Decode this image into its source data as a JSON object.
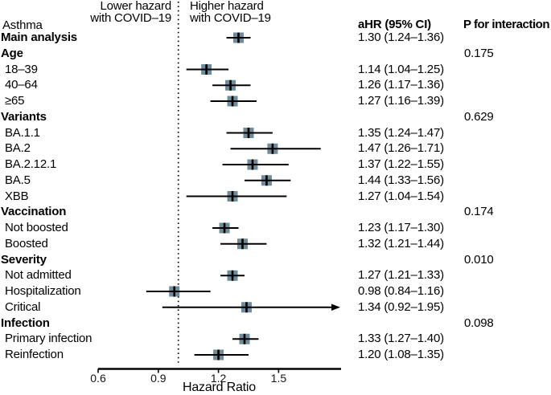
{
  "chart_data": {
    "type": "scatter",
    "subtype": "forest-plot",
    "title": "",
    "xlabel": "Hazard Ratio",
    "x_ticks": [
      "0.6",
      "0.9",
      "1.2",
      "1.5"
    ],
    "x_tick_values": [
      0.6,
      0.9,
      1.2,
      1.5
    ],
    "xlim": [
      0.6,
      1.81
    ],
    "scale": "linear",
    "reference_line": 1.0,
    "grid": false,
    "annotations": {
      "left": [
        "Lower hazard",
        "with COVID–19"
      ],
      "right": [
        "Higher hazard",
        "with COVID–19"
      ]
    },
    "columns": {
      "label": "Asthma",
      "ahr": "aHR (95% CI)",
      "p": "P for interaction"
    },
    "colors": {
      "marker": "#708b99",
      "line": "#000000",
      "reference": "#000000"
    },
    "rows": [
      {
        "label": "Main analysis",
        "bold": true,
        "est": 1.3,
        "lo": 1.24,
        "hi": 1.36,
        "ahr": "1.30 (1.24–1.36)"
      },
      {
        "label": "Age",
        "bold": true,
        "p": "0.175"
      },
      {
        "label": "18–39",
        "bold": false,
        "est": 1.14,
        "lo": 1.04,
        "hi": 1.25,
        "ahr": "1.14 (1.04–1.25)"
      },
      {
        "label": "40–64",
        "bold": false,
        "est": 1.26,
        "lo": 1.17,
        "hi": 1.36,
        "ahr": "1.26 (1.17–1.36)"
      },
      {
        "label": "≥65",
        "bold": false,
        "est": 1.27,
        "lo": 1.16,
        "hi": 1.39,
        "ahr": "1.27 (1.16–1.39)"
      },
      {
        "label": "Variants",
        "bold": true,
        "p": "0.629"
      },
      {
        "label": "BA.1.1",
        "bold": false,
        "est": 1.35,
        "lo": 1.24,
        "hi": 1.47,
        "ahr": "1.35 (1.24–1.47)"
      },
      {
        "label": "BA.2",
        "bold": false,
        "est": 1.47,
        "lo": 1.26,
        "hi": 1.71,
        "ahr": "1.47 (1.26–1.71)"
      },
      {
        "label": "BA.2.12.1",
        "bold": false,
        "est": 1.37,
        "lo": 1.22,
        "hi": 1.55,
        "ahr": "1.37 (1.22–1.55)"
      },
      {
        "label": "BA.5",
        "bold": false,
        "est": 1.44,
        "lo": 1.33,
        "hi": 1.56,
        "ahr": "1.44 (1.33–1.56)"
      },
      {
        "label": "XBB",
        "bold": false,
        "est": 1.27,
        "lo": 1.04,
        "hi": 1.54,
        "ahr": "1.27 (1.04–1.54)"
      },
      {
        "label": "Vaccination",
        "bold": true,
        "p": "0.174"
      },
      {
        "label": "Not boosted",
        "bold": false,
        "est": 1.23,
        "lo": 1.17,
        "hi": 1.3,
        "ahr": "1.23 (1.17–1.30)"
      },
      {
        "label": "Boosted",
        "bold": false,
        "est": 1.32,
        "lo": 1.21,
        "hi": 1.44,
        "ahr": "1.32 (1.21–1.44)"
      },
      {
        "label": "Severity",
        "bold": true,
        "p": "0.010"
      },
      {
        "label": "Not admitted",
        "bold": false,
        "est": 1.27,
        "lo": 1.21,
        "hi": 1.33,
        "ahr": "1.27 (1.21–1.33)"
      },
      {
        "label": "Hospitalization",
        "bold": false,
        "est": 0.98,
        "lo": 0.84,
        "hi": 1.16,
        "ahr": "0.98 (0.84–1.16)"
      },
      {
        "label": "Critical",
        "bold": false,
        "est": 1.34,
        "lo": 0.92,
        "hi": 1.95,
        "ahr": "1.34 (0.92–1.95)",
        "clipped": true
      },
      {
        "label": "Infection",
        "bold": true,
        "p": "0.098"
      },
      {
        "label": "Primary infection",
        "bold": false,
        "est": 1.33,
        "lo": 1.27,
        "hi": 1.4,
        "ahr": "1.33 (1.27–1.40)"
      },
      {
        "label": "Reinfection",
        "bold": false,
        "est": 1.2,
        "lo": 1.08,
        "hi": 1.35,
        "ahr": "1.20 (1.08–1.35)"
      }
    ]
  }
}
